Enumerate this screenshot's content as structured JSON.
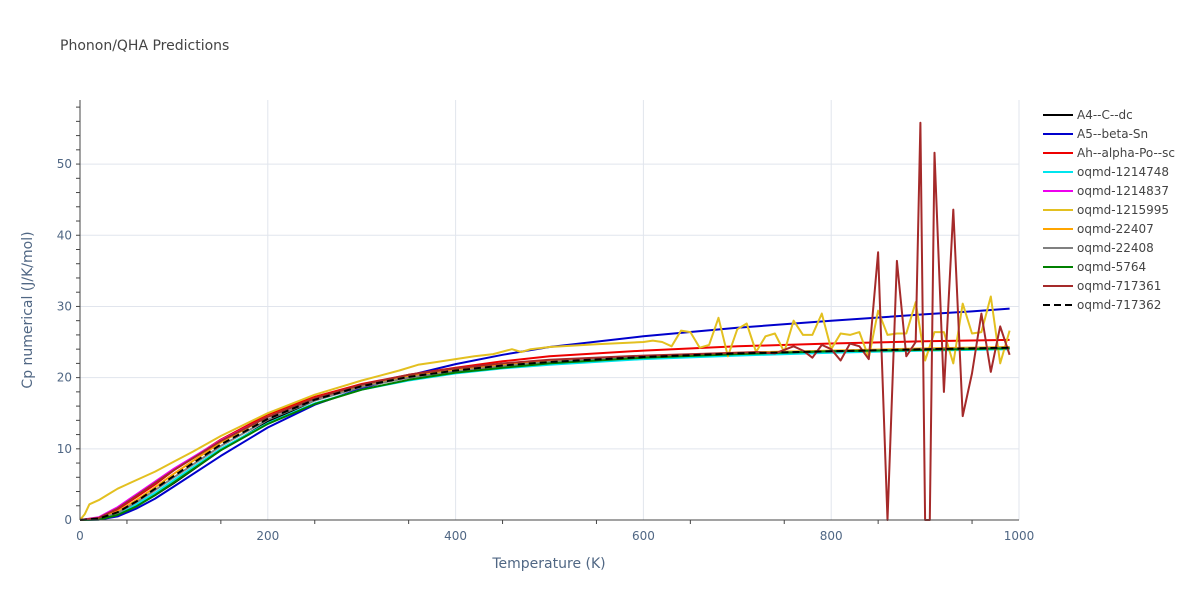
{
  "chart_data": {
    "type": "line",
    "title": "Phonon/QHA Predictions",
    "xlabel": "Temperature (K)",
    "ylabel": "Cp numerical (J/K/mol)",
    "xlim": [
      0,
      1000
    ],
    "ylim": [
      0,
      59
    ],
    "xticks": [
      0,
      200,
      400,
      600,
      800,
      1000
    ],
    "yticks": [
      0,
      10,
      20,
      30,
      40,
      50
    ],
    "grid": true,
    "legend_position": "right",
    "series": [
      {
        "name": "A4--C--dc",
        "color": "#000000",
        "dash": false,
        "x": [
          0,
          20,
          40,
          60,
          80,
          100,
          150,
          200,
          250,
          300,
          350,
          400,
          450,
          500,
          600,
          700,
          800,
          900,
          990
        ],
        "y": [
          0,
          0.1,
          0.8,
          2.0,
          3.5,
          5.2,
          9.8,
          13.8,
          16.8,
          18.8,
          20.1,
          21.0,
          21.7,
          22.2,
          23.0,
          23.4,
          23.7,
          24.0,
          24.2
        ]
      },
      {
        "name": "A5--beta-Sn",
        "color": "#0000cc",
        "dash": false,
        "x": [
          0,
          20,
          40,
          60,
          80,
          100,
          150,
          200,
          250,
          300,
          350,
          400,
          450,
          500,
          600,
          700,
          800,
          900,
          950,
          990
        ],
        "y": [
          0,
          0.05,
          0.5,
          1.6,
          3.0,
          4.7,
          9.0,
          13.0,
          16.2,
          18.5,
          20.3,
          21.9,
          23.2,
          24.3,
          25.8,
          27.0,
          28.0,
          28.9,
          29.3,
          29.7
        ]
      },
      {
        "name": "Ah--alpha-Po--sc",
        "color": "#ee0000",
        "dash": false,
        "x": [
          0,
          20,
          40,
          60,
          80,
          100,
          150,
          200,
          250,
          300,
          350,
          400,
          450,
          500,
          600,
          700,
          800,
          900,
          990
        ],
        "y": [
          0,
          0.3,
          1.5,
          3.2,
          5.0,
          7.0,
          11.3,
          14.8,
          17.3,
          19.1,
          20.4,
          21.4,
          22.3,
          23.0,
          23.8,
          24.4,
          24.8,
          25.1,
          25.3
        ]
      },
      {
        "name": "oqmd-1214748",
        "color": "#00e5ee",
        "dash": false,
        "x": [
          0,
          20,
          40,
          60,
          80,
          100,
          150,
          200,
          250,
          300,
          350,
          400,
          450,
          500,
          600,
          700,
          800,
          900,
          990
        ],
        "y": [
          0,
          0.1,
          0.9,
          2.2,
          3.8,
          5.6,
          10.0,
          13.6,
          16.4,
          18.3,
          19.6,
          20.6,
          21.3,
          21.8,
          22.6,
          23.1,
          23.5,
          23.8,
          24.0
        ]
      },
      {
        "name": "oqmd-1214837",
        "color": "#ee00ee",
        "dash": false,
        "x": [
          0,
          20,
          40,
          60,
          80,
          100,
          150,
          200,
          250,
          300,
          350,
          400,
          450,
          500,
          600,
          700,
          800,
          900,
          990
        ],
        "y": [
          0,
          0.4,
          1.8,
          3.6,
          5.4,
          7.2,
          11.2,
          14.5,
          17.0,
          18.8,
          20.0,
          20.9,
          21.6,
          22.1,
          22.9,
          23.4,
          23.7,
          24.0,
          24.2
        ]
      },
      {
        "name": "oqmd-1215995",
        "color": "#e3c020",
        "dash": false,
        "x": [
          0,
          5,
          10,
          20,
          30,
          40,
          50,
          60,
          80,
          100,
          120,
          150,
          200,
          250,
          300,
          340,
          360,
          380,
          400,
          420,
          440,
          460,
          470,
          480,
          500,
          550,
          600,
          610,
          620,
          630,
          640,
          650,
          660,
          670,
          680,
          690,
          700,
          710,
          720,
          730,
          740,
          750,
          760,
          770,
          780,
          790,
          800,
          810,
          820,
          830,
          840,
          850,
          860,
          870,
          880,
          890,
          900,
          910,
          920,
          930,
          940,
          950,
          960,
          970,
          980,
          990
        ],
        "y": [
          0,
          0.8,
          2.2,
          2.8,
          3.6,
          4.4,
          5.0,
          5.6,
          6.8,
          8.2,
          9.6,
          11.8,
          15.0,
          17.6,
          19.6,
          21.0,
          21.8,
          22.2,
          22.6,
          23.0,
          23.3,
          24.0,
          23.6,
          24.0,
          24.3,
          24.7,
          25.0,
          25.2,
          25.0,
          24.4,
          26.6,
          26.4,
          24.2,
          24.6,
          28.4,
          23.0,
          26.8,
          27.6,
          23.6,
          25.8,
          26.2,
          23.6,
          28.0,
          26.0,
          26.0,
          29.0,
          24.0,
          26.2,
          26.0,
          26.4,
          22.8,
          29.4,
          26.0,
          26.2,
          26.2,
          30.6,
          22.4,
          26.4,
          26.4,
          22.0,
          30.4,
          26.2,
          26.4,
          31.4,
          22.0,
          26.6
        ]
      },
      {
        "name": "oqmd-22407",
        "color": "#ffa500",
        "dash": false,
        "x": [
          0,
          20,
          40,
          60,
          80,
          100,
          150,
          200,
          250,
          300,
          350,
          400,
          450,
          500,
          600,
          700,
          800,
          900,
          990
        ],
        "y": [
          0,
          0.2,
          1.2,
          2.8,
          4.6,
          6.5,
          10.9,
          14.5,
          17.1,
          18.9,
          20.2,
          21.1,
          21.8,
          22.3,
          23.0,
          23.5,
          23.8,
          24.1,
          24.3
        ]
      },
      {
        "name": "oqmd-22408",
        "color": "#808080",
        "dash": false,
        "x": [
          0,
          20,
          40,
          60,
          80,
          100,
          150,
          200,
          250,
          300,
          350,
          400,
          450,
          500,
          600,
          700,
          800,
          900,
          990
        ],
        "y": [
          0,
          0.15,
          1.0,
          2.5,
          4.2,
          6.0,
          10.4,
          14.1,
          16.8,
          18.7,
          20.0,
          20.9,
          21.6,
          22.2,
          22.9,
          23.4,
          23.7,
          24.0,
          24.2
        ]
      },
      {
        "name": "oqmd-5764",
        "color": "#008000",
        "dash": false,
        "x": [
          0,
          20,
          40,
          60,
          80,
          100,
          150,
          200,
          250,
          300,
          350,
          400,
          450,
          500,
          600,
          700,
          800,
          900,
          990
        ],
        "y": [
          0,
          0.05,
          0.7,
          1.9,
          3.5,
          5.3,
          9.8,
          13.5,
          16.3,
          18.3,
          19.7,
          20.7,
          21.4,
          22.0,
          22.8,
          23.3,
          23.7,
          23.9,
          24.1
        ]
      },
      {
        "name": "oqmd-717361",
        "color": "#a52a2a",
        "dash": false,
        "x": [
          0,
          20,
          40,
          60,
          80,
          100,
          150,
          200,
          250,
          300,
          350,
          400,
          450,
          500,
          600,
          700,
          720,
          740,
          760,
          770,
          780,
          790,
          800,
          810,
          820,
          830,
          840,
          850,
          860,
          870,
          880,
          890,
          895,
          900,
          905,
          910,
          920,
          930,
          940,
          950,
          960,
          970,
          980,
          990
        ],
        "y": [
          0,
          0.3,
          1.6,
          3.4,
          5.2,
          7.0,
          11.1,
          14.5,
          17.1,
          19.0,
          20.4,
          21.3,
          22.0,
          22.5,
          23.1,
          23.5,
          23.6,
          23.4,
          24.4,
          23.8,
          22.8,
          24.6,
          24.0,
          22.4,
          24.8,
          24.4,
          22.6,
          37.6,
          0,
          36.4,
          23.0,
          25.0,
          55.8,
          0,
          0,
          51.6,
          18.0,
          43.6,
          14.6,
          20.6,
          29.0,
          20.8,
          27.2,
          23.2
        ]
      },
      {
        "name": "oqmd-717362",
        "color": "#000000",
        "dash": true,
        "x": [
          0,
          20,
          40,
          60,
          80,
          100,
          150,
          200,
          250,
          300,
          350,
          400,
          450,
          500,
          600,
          700,
          800,
          900,
          990
        ],
        "y": [
          0,
          0.2,
          1.1,
          2.6,
          4.4,
          6.2,
          10.6,
          14.2,
          16.9,
          18.8,
          20.1,
          21.0,
          21.7,
          22.2,
          22.9,
          23.4,
          23.7,
          24.0,
          24.2
        ]
      }
    ]
  }
}
